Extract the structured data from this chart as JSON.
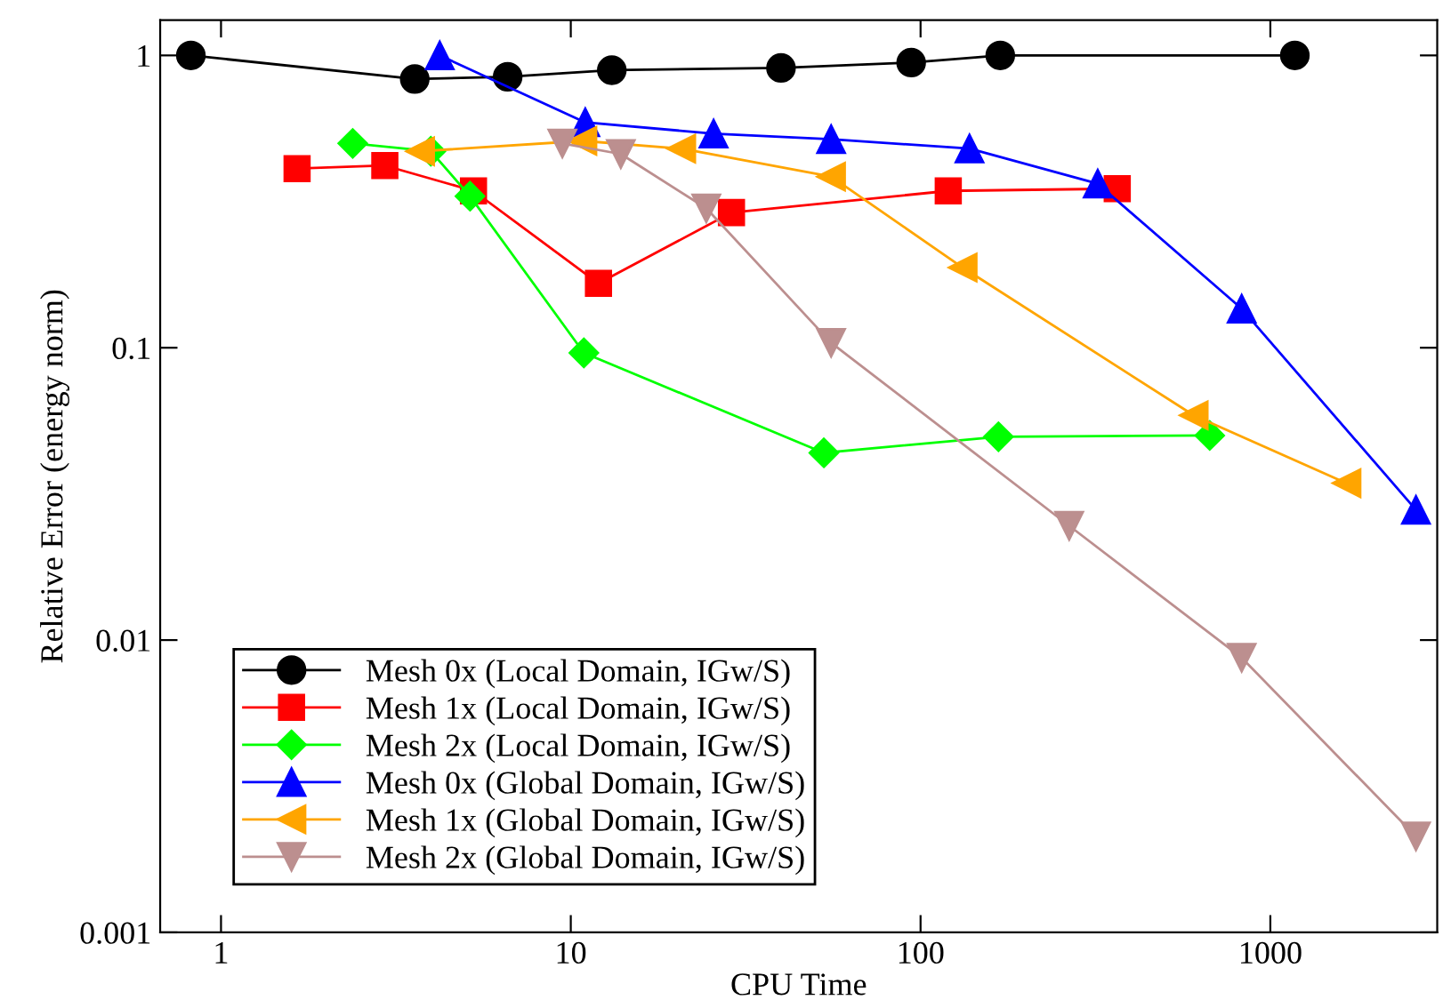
{
  "chart_data": {
    "type": "line",
    "xlabel": "CPU Time",
    "ylabel": "Relative Error (energy norm)",
    "log": "xy",
    "xlim": [
      0.67,
      3000
    ],
    "ylim": [
      0.001,
      1.32
    ],
    "xticks": [
      1,
      10,
      100,
      1000
    ],
    "yticks": [
      {
        "value": 0.001,
        "label": "0.001"
      },
      {
        "value": 0.01,
        "label": "0.01"
      },
      {
        "value": 0.1,
        "label": "0.1"
      },
      {
        "value": 1,
        "label": "1"
      }
    ],
    "grid": false,
    "legend": "bottom left",
    "line_style": "solid",
    "series": [
      {
        "name": "Mesh 0x (Local Domain, IGw/S)",
        "color": "#000000",
        "marker": "circle",
        "x": [
          0.82,
          3.58,
          6.6,
          13.1,
          39.9,
          94,
          169,
          1175
        ],
        "values": [
          1.0,
          0.83,
          0.845,
          0.89,
          0.906,
          0.945,
          1.0,
          1.0
        ]
      },
      {
        "name": "Mesh 1x (Local Domain, IGw/S)",
        "color": "#ff0000",
        "marker": "square",
        "x": [
          1.65,
          2.94,
          5.27,
          12.0,
          28.8,
          120,
          365
        ],
        "values": [
          0.41,
          0.42,
          0.344,
          0.166,
          0.29,
          0.344,
          0.35
        ]
      },
      {
        "name": "Mesh 2x (Local Domain, IGw/S)",
        "color": "#00ff00",
        "marker": "diamond",
        "x": [
          2.38,
          3.98,
          5.15,
          10.9,
          52.9,
          167,
          671
        ],
        "values": [
          0.5,
          0.47,
          0.33,
          0.096,
          0.0437,
          0.0496,
          0.0501
        ]
      },
      {
        "name": "Mesh 0x (Global Domain, IGw/S)",
        "color": "#0000ff",
        "marker": "triangle",
        "x": [
          4.22,
          11.0,
          25.6,
          55.5,
          138,
          321,
          828,
          2608
        ],
        "values": [
          1.0,
          0.59,
          0.54,
          0.517,
          0.48,
          0.364,
          0.136,
          0.0279
        ]
      },
      {
        "name": "Mesh 1x (Global Domain, IGw/S)",
        "color": "#ffa500",
        "marker": "triangle-left",
        "x": [
          3.71,
          10.8,
          20.7,
          55.5,
          132,
          604,
          1652
        ],
        "values": [
          0.47,
          0.51,
          0.48,
          0.385,
          0.188,
          0.0587,
          0.0344
        ]
      },
      {
        "name": "Mesh 2x (Global Domain, IGw/S)",
        "color": "#bc8f8f",
        "marker": "triangle-down",
        "x": [
          9.46,
          13.9,
          24.4,
          55.5,
          266,
          828,
          2608
        ],
        "values": [
          0.5,
          0.46,
          0.3,
          0.104,
          0.0246,
          0.0087,
          0.00213
        ]
      }
    ]
  }
}
